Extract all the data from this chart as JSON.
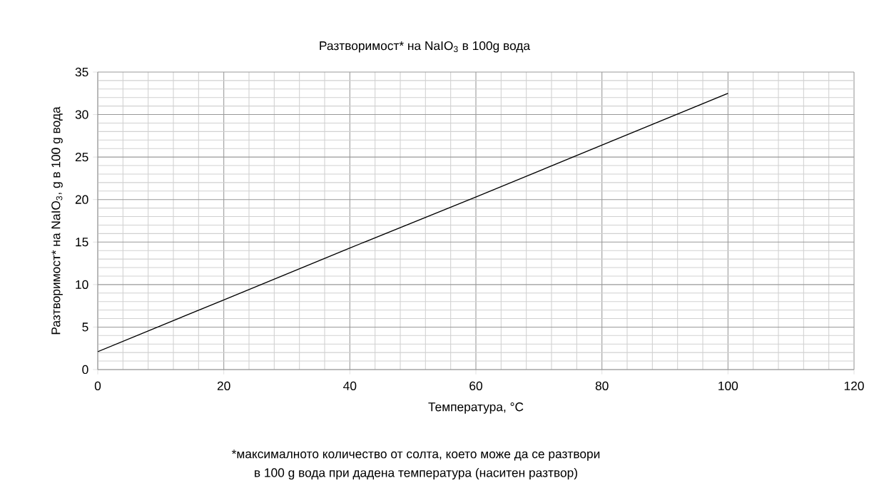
{
  "chart_data": {
    "type": "line",
    "title": "Разтворимост* на NaIO$_{3}$ в 100g вода",
    "xlabel": "Температура, °C",
    "ylabel": "Разтворимост* на NaIO$_{3}$, g в 100 g вода",
    "annotations": [
      "*максималното количество от солта, което може да се разтвори",
      "в 100 g вода при дадена температура (наситен разтвор)"
    ],
    "x": [
      0,
      20,
      40,
      60,
      80,
      100
    ],
    "series": [
      {
        "color": "#000000",
        "values": [
          2.1,
          8.2,
          14.3,
          20.3,
          26.4,
          32.5
        ]
      }
    ],
    "xlim": [
      0,
      120
    ],
    "ylim": [
      0,
      35
    ],
    "xticks": [
      0,
      20,
      40,
      60,
      80,
      100,
      120
    ],
    "yticks": [
      0,
      5,
      10,
      15,
      20,
      25,
      30,
      35
    ],
    "grid": true,
    "marker": "none",
    "line_style": "solid"
  }
}
